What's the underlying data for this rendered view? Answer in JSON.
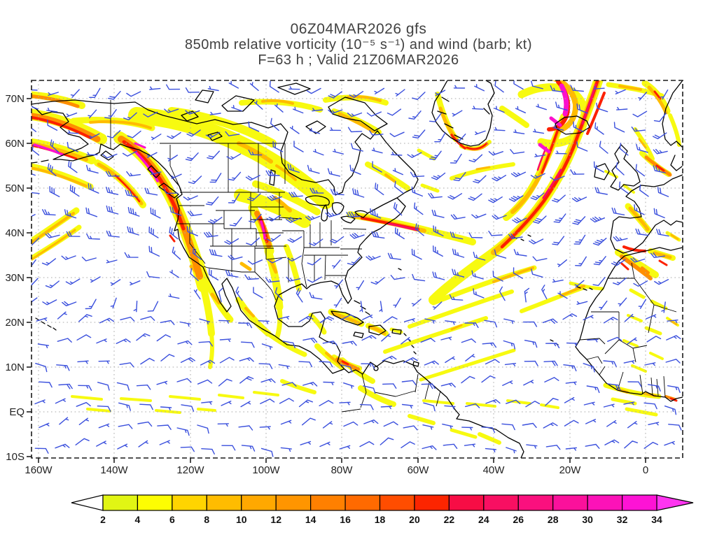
{
  "title": {
    "line1": "06Z04MAR2026 gfs",
    "line2": "850mb relative vorticity (10⁻⁵ s⁻¹) and wind (barb; kt)",
    "line3": "F=63 h ; Valid 21Z06MAR2026"
  },
  "axes": {
    "lat_labels": [
      "70N",
      "60N",
      "50N",
      "40N",
      "30N",
      "20N",
      "10N",
      "EQ",
      "10S"
    ],
    "lon_labels": [
      "160W",
      "140W",
      "120W",
      "100W",
      "80W",
      "60W",
      "40W",
      "20W",
      "0"
    ]
  },
  "colorbar": {
    "tick_labels": [
      "2",
      "4",
      "6",
      "8",
      "10",
      "12",
      "14",
      "16",
      "18",
      "20",
      "22",
      "24",
      "26",
      "28",
      "30",
      "32",
      "34"
    ],
    "colors": [
      "#e1f514",
      "#fdfd02",
      "#ffd400",
      "#ffbc00",
      "#ffa800",
      "#ff9500",
      "#ff8000",
      "#ff6a00",
      "#ff4d00",
      "#fc2500",
      "#f70d45",
      "#f80f62",
      "#fa107e",
      "#fb119b",
      "#fc12b8",
      "#fd13d5"
    ],
    "below_min_color": "#ffffff",
    "above_max_color": "#ff35f0",
    "outline_color": "#000000"
  },
  "map": {
    "coast_color": "#000000",
    "border_color": "#000000",
    "barb_color": "#3b50dd",
    "grid_color": "#a8a8a8",
    "frame_color": "#1a1a1a",
    "shade_levels": {
      "Y": "#f7fa10",
      "O1": "#ffbb00",
      "O2": "#ff8e00",
      "R": "#fc2000",
      "P": "#f80f62",
      "M": "#fb10cc"
    }
  },
  "chart_data": {
    "type": "heatmap",
    "title": "06Z04MAR2026 gfs",
    "subtitle": "850mb relative vorticity (10⁻⁵ s⁻¹) and wind (barb; kt)",
    "forecast_label": "F=63 h ; Valid 21Z06MAR2026",
    "model": "gfs",
    "init_time": "06Z04MAR2026",
    "forecast_hour": 63,
    "valid_time": "21Z06MAR2026",
    "field": "850mb relative vorticity",
    "units": "10⁻⁵ s⁻¹",
    "overlay": "wind (barb; kt)",
    "x_axis": {
      "type": "longitude",
      "ticks": [
        "160W",
        "140W",
        "120W",
        "100W",
        "80W",
        "60W",
        "40W",
        "20W",
        "0"
      ]
    },
    "y_axis": {
      "type": "latitude",
      "ticks": [
        "70N",
        "60N",
        "50N",
        "40N",
        "30N",
        "20N",
        "10N",
        "EQ",
        "10S"
      ]
    },
    "colorbar_levels": [
      2,
      4,
      6,
      8,
      10,
      12,
      14,
      16,
      18,
      20,
      22,
      24,
      26,
      28,
      30,
      32,
      34
    ],
    "colorbar_colors": [
      "#e1f514",
      "#fdfd02",
      "#ffd400",
      "#ffbc00",
      "#ffa800",
      "#ff9500",
      "#ff8000",
      "#ff6a00",
      "#ff4d00",
      "#fc2500",
      "#f70d45",
      "#f80f62",
      "#fa107e",
      "#fb119b",
      "#fc12b8",
      "#fd13d5"
    ],
    "legend_position": "bottom",
    "grid": "dotted 10deg lat / 20deg lon"
  }
}
